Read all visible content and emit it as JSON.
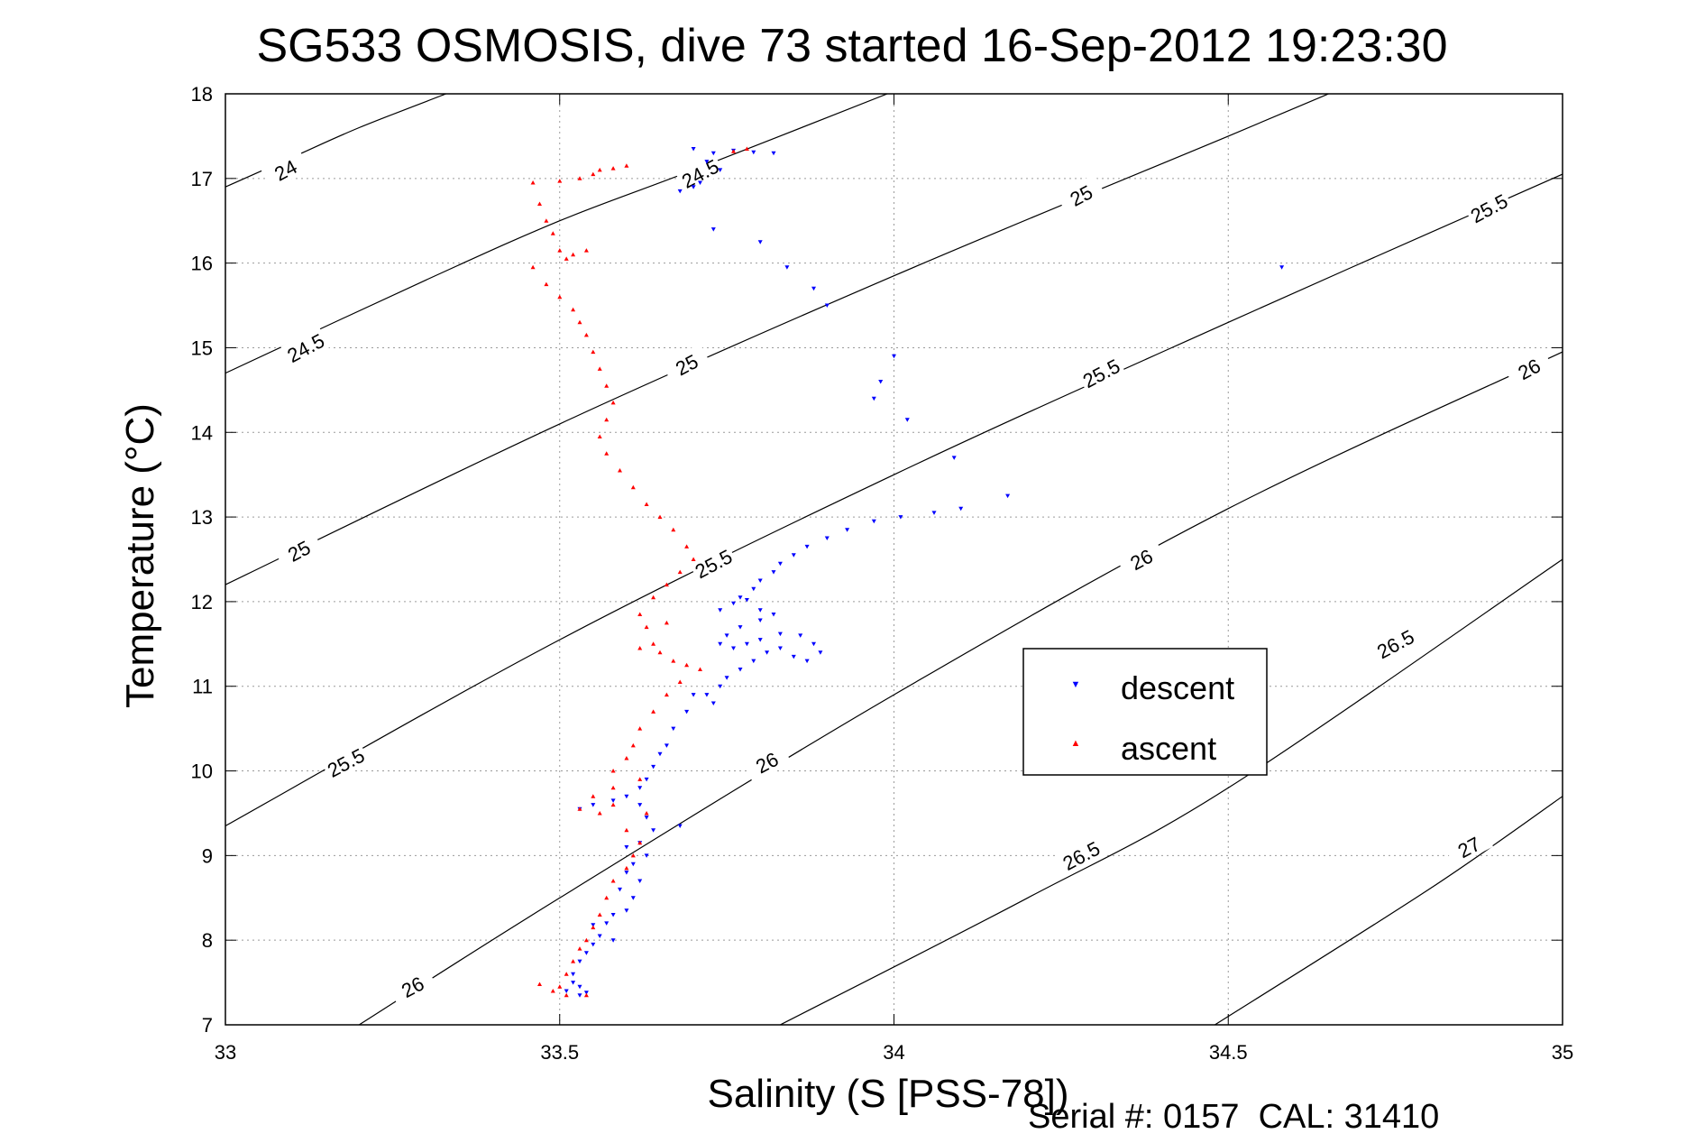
{
  "chart_data": {
    "type": "scatter",
    "title": "SG533 OSMOSIS, dive 73 started 16-Sep-2012 19:23:30",
    "xlabel": "Salinity (S [PSS-78])",
    "ylabel": "Temperature (°C)",
    "footer": "Serial #: 0157  CAL: 31410",
    "xlim": [
      33,
      35
    ],
    "ylim": [
      7,
      18
    ],
    "xticks": [
      33,
      33.5,
      34,
      34.5,
      35
    ],
    "xtick_labels": [
      "33",
      "33.5",
      "34",
      "34.5",
      "35"
    ],
    "yticks": [
      7,
      8,
      9,
      10,
      11,
      12,
      13,
      14,
      15,
      16,
      17,
      18
    ],
    "ytick_labels": [
      "7",
      "8",
      "9",
      "10",
      "11",
      "12",
      "13",
      "14",
      "15",
      "16",
      "17",
      "18"
    ],
    "grid": true,
    "legend_position": "middle-right",
    "contours": [
      {
        "level": "24",
        "points": [
          [
            33,
            16.9
          ],
          [
            33.1,
            17.25
          ],
          [
            33.2,
            17.6
          ],
          [
            33.33,
            18
          ]
        ],
        "labels": [
          [
            33.09,
            17.1
          ]
        ]
      },
      {
        "level": "24.5",
        "points": [
          [
            33,
            14.7
          ],
          [
            33.3,
            15.8
          ],
          [
            33.5,
            16.5
          ],
          [
            33.7,
            17.1
          ],
          [
            33.99,
            18
          ]
        ],
        "labels": [
          [
            33.12,
            15.0
          ],
          [
            33.71,
            17.06
          ]
        ]
      },
      {
        "level": "25",
        "points": [
          [
            33,
            12.2
          ],
          [
            33.5,
            14.1
          ],
          [
            34,
            15.85
          ],
          [
            34.5,
            17.5
          ],
          [
            34.65,
            18
          ]
        ],
        "labels": [
          [
            33.11,
            12.6
          ],
          [
            33.69,
            14.8
          ],
          [
            34.28,
            16.8
          ]
        ]
      },
      {
        "level": "25.5",
        "points": [
          [
            33,
            9.35
          ],
          [
            33.5,
            11.55
          ],
          [
            34,
            13.5
          ],
          [
            34.5,
            15.3
          ],
          [
            35,
            17.05
          ]
        ],
        "labels": [
          [
            33.18,
            10.1
          ],
          [
            33.73,
            12.45
          ],
          [
            34.31,
            14.7
          ],
          [
            34.89,
            16.65
          ]
        ]
      },
      {
        "level": "26",
        "points": [
          [
            33.2,
            7
          ],
          [
            33.5,
            8.5
          ],
          [
            34,
            10.9
          ],
          [
            34.5,
            13.1
          ],
          [
            35,
            14.95
          ]
        ],
        "labels": [
          [
            33.28,
            7.45
          ],
          [
            33.81,
            10.1
          ],
          [
            34.37,
            12.5
          ],
          [
            34.95,
            14.75
          ]
        ]
      },
      {
        "level": "26.5",
        "points": [
          [
            33.83,
            7
          ],
          [
            34.2,
            8.5
          ],
          [
            34.5,
            9.8
          ],
          [
            35,
            12.5
          ]
        ],
        "labels": [
          [
            34.28,
            9.0
          ],
          [
            34.75,
            11.5
          ]
        ]
      },
      {
        "level": "27",
        "points": [
          [
            34.48,
            7
          ],
          [
            34.8,
            8.6
          ],
          [
            35,
            9.7
          ]
        ],
        "labels": [
          [
            34.86,
            9.1
          ]
        ]
      }
    ],
    "series": [
      {
        "name": "descent",
        "color": "#0000ff",
        "marker": "triangle-down",
        "points": [
          [
            33.7,
            17.35
          ],
          [
            33.73,
            17.3
          ],
          [
            33.76,
            17.33
          ],
          [
            33.79,
            17.31
          ],
          [
            33.82,
            17.3
          ],
          [
            33.72,
            17.2
          ],
          [
            33.74,
            17.1
          ],
          [
            33.71,
            16.95
          ],
          [
            33.68,
            16.85
          ],
          [
            33.7,
            16.9
          ],
          [
            33.73,
            16.4
          ],
          [
            33.8,
            16.25
          ],
          [
            33.84,
            15.95
          ],
          [
            33.88,
            15.7
          ],
          [
            33.9,
            15.5
          ],
          [
            34.0,
            14.9
          ],
          [
            33.98,
            14.6
          ],
          [
            33.97,
            14.4
          ],
          [
            34.02,
            14.15
          ],
          [
            34.09,
            13.7
          ],
          [
            34.17,
            13.25
          ],
          [
            34.1,
            13.1
          ],
          [
            34.06,
            13.05
          ],
          [
            34.01,
            13.0
          ],
          [
            33.97,
            12.95
          ],
          [
            33.93,
            12.85
          ],
          [
            33.9,
            12.75
          ],
          [
            33.87,
            12.65
          ],
          [
            33.85,
            12.55
          ],
          [
            33.83,
            12.45
          ],
          [
            33.82,
            12.35
          ],
          [
            33.8,
            12.25
          ],
          [
            33.79,
            12.15
          ],
          [
            33.77,
            12.05
          ],
          [
            33.76,
            11.98
          ],
          [
            33.78,
            12.02
          ],
          [
            33.74,
            11.9
          ],
          [
            33.8,
            11.9
          ],
          [
            33.82,
            11.85
          ],
          [
            33.8,
            11.78
          ],
          [
            33.77,
            11.7
          ],
          [
            33.75,
            11.6
          ],
          [
            33.74,
            11.5
          ],
          [
            33.76,
            11.45
          ],
          [
            33.78,
            11.5
          ],
          [
            33.8,
            11.55
          ],
          [
            33.83,
            11.62
          ],
          [
            33.86,
            11.6
          ],
          [
            33.88,
            11.5
          ],
          [
            33.89,
            11.4
          ],
          [
            33.87,
            11.3
          ],
          [
            33.85,
            11.35
          ],
          [
            33.83,
            11.45
          ],
          [
            33.81,
            11.4
          ],
          [
            33.79,
            11.3
          ],
          [
            33.77,
            11.2
          ],
          [
            33.75,
            11.1
          ],
          [
            33.74,
            11.0
          ],
          [
            33.72,
            10.9
          ],
          [
            33.73,
            10.8
          ],
          [
            33.7,
            10.9
          ],
          [
            33.69,
            10.7
          ],
          [
            33.67,
            10.5
          ],
          [
            33.66,
            10.3
          ],
          [
            33.65,
            10.2
          ],
          [
            33.64,
            10.05
          ],
          [
            33.63,
            9.9
          ],
          [
            33.62,
            9.8
          ],
          [
            33.6,
            9.7
          ],
          [
            33.58,
            9.65
          ],
          [
            33.55,
            9.6
          ],
          [
            33.53,
            9.55
          ],
          [
            33.62,
            9.6
          ],
          [
            33.63,
            9.45
          ],
          [
            33.64,
            9.3
          ],
          [
            33.68,
            9.35
          ],
          [
            33.62,
            9.15
          ],
          [
            33.6,
            9.1
          ],
          [
            33.63,
            9.0
          ],
          [
            33.61,
            8.9
          ],
          [
            33.6,
            8.8
          ],
          [
            33.62,
            8.7
          ],
          [
            33.59,
            8.6
          ],
          [
            33.61,
            8.5
          ],
          [
            33.6,
            8.35
          ],
          [
            33.58,
            8.3
          ],
          [
            33.57,
            8.2
          ],
          [
            33.55,
            8.18
          ],
          [
            33.56,
            8.05
          ],
          [
            33.58,
            8.0
          ],
          [
            33.55,
            7.95
          ],
          [
            33.54,
            7.85
          ],
          [
            33.53,
            7.75
          ],
          [
            33.52,
            7.6
          ],
          [
            33.52,
            7.5
          ],
          [
            33.53,
            7.45
          ],
          [
            33.51,
            7.4
          ],
          [
            33.53,
            7.35
          ],
          [
            33.54,
            7.38
          ],
          [
            34.58,
            15.95
          ]
        ]
      },
      {
        "name": "ascent",
        "color": "#ff0000",
        "marker": "triangle-up",
        "points": [
          [
            33.78,
            17.35
          ],
          [
            33.76,
            17.32
          ],
          [
            33.6,
            17.15
          ],
          [
            33.58,
            17.12
          ],
          [
            33.56,
            17.1
          ],
          [
            33.55,
            17.05
          ],
          [
            33.53,
            17.0
          ],
          [
            33.5,
            16.97
          ],
          [
            33.46,
            16.95
          ],
          [
            33.47,
            16.7
          ],
          [
            33.48,
            16.5
          ],
          [
            33.49,
            16.35
          ],
          [
            33.5,
            16.15
          ],
          [
            33.51,
            16.05
          ],
          [
            33.52,
            16.1
          ],
          [
            33.54,
            16.15
          ],
          [
            33.46,
            15.95
          ],
          [
            33.48,
            15.75
          ],
          [
            33.5,
            15.6
          ],
          [
            33.52,
            15.45
          ],
          [
            33.53,
            15.3
          ],
          [
            33.54,
            15.15
          ],
          [
            33.55,
            14.95
          ],
          [
            33.56,
            14.75
          ],
          [
            33.57,
            14.55
          ],
          [
            33.58,
            14.35
          ],
          [
            33.57,
            14.15
          ],
          [
            33.56,
            13.95
          ],
          [
            33.57,
            13.75
          ],
          [
            33.59,
            13.55
          ],
          [
            33.61,
            13.35
          ],
          [
            33.63,
            13.15
          ],
          [
            33.65,
            13.0
          ],
          [
            33.67,
            12.85
          ],
          [
            33.69,
            12.65
          ],
          [
            33.7,
            12.5
          ],
          [
            33.68,
            12.35
          ],
          [
            33.66,
            12.2
          ],
          [
            33.64,
            12.05
          ],
          [
            33.62,
            11.85
          ],
          [
            33.63,
            11.7
          ],
          [
            33.66,
            11.75
          ],
          [
            33.64,
            11.5
          ],
          [
            33.62,
            11.45
          ],
          [
            33.65,
            11.4
          ],
          [
            33.67,
            11.3
          ],
          [
            33.69,
            11.25
          ],
          [
            33.71,
            11.2
          ],
          [
            33.68,
            11.05
          ],
          [
            33.66,
            10.9
          ],
          [
            33.64,
            10.7
          ],
          [
            33.62,
            10.5
          ],
          [
            33.61,
            10.3
          ],
          [
            33.6,
            10.15
          ],
          [
            33.58,
            10.0
          ],
          [
            33.62,
            9.9
          ],
          [
            33.58,
            9.8
          ],
          [
            33.55,
            9.7
          ],
          [
            33.53,
            9.55
          ],
          [
            33.56,
            9.5
          ],
          [
            33.58,
            9.6
          ],
          [
            33.63,
            9.5
          ],
          [
            33.6,
            9.3
          ],
          [
            33.62,
            9.15
          ],
          [
            33.61,
            9.0
          ],
          [
            33.6,
            8.85
          ],
          [
            33.58,
            8.7
          ],
          [
            33.57,
            8.5
          ],
          [
            33.56,
            8.3
          ],
          [
            33.55,
            8.15
          ],
          [
            33.54,
            8.0
          ],
          [
            33.53,
            7.9
          ],
          [
            33.52,
            7.75
          ],
          [
            33.51,
            7.6
          ],
          [
            33.5,
            7.45
          ],
          [
            33.49,
            7.4
          ],
          [
            33.51,
            7.35
          ],
          [
            33.54,
            7.35
          ],
          [
            33.47,
            7.48
          ]
        ]
      }
    ]
  }
}
